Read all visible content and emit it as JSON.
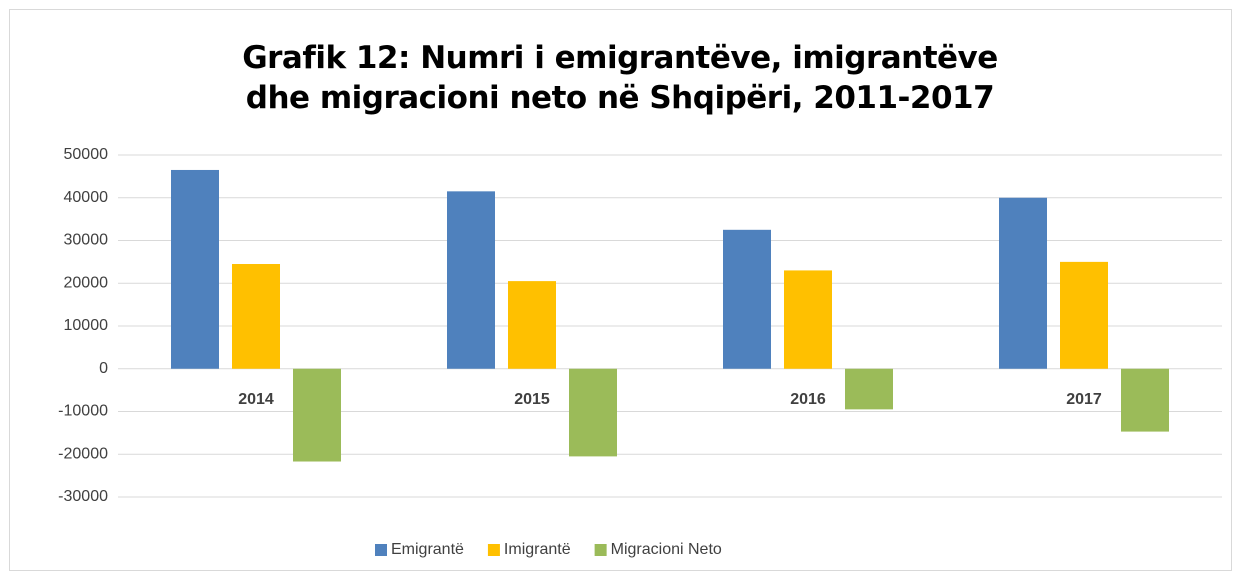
{
  "chart_data": {
    "type": "bar",
    "title": "Grafik 12: Numri i emigrantëve, imigrantëve dhe migracioni neto në Shqipëri, 2011-2017",
    "categories": [
      "2014",
      "2015",
      "2016",
      "2017"
    ],
    "series": [
      {
        "name": "Emigrantë",
        "color": "#4f81bd",
        "values": [
          46500,
          41500,
          32500,
          40000
        ]
      },
      {
        "name": "Imigrantë",
        "color": "#ffc000",
        "values": [
          24500,
          20500,
          23000,
          25000
        ]
      },
      {
        "name": "Migracioni Neto",
        "color": "#9bbb59",
        "values": [
          -21700,
          -20500,
          -9500,
          -14700
        ]
      }
    ],
    "ylim": [
      -30000,
      50000
    ],
    "yticks": [
      -30000,
      -20000,
      -10000,
      0,
      10000,
      20000,
      30000,
      40000,
      50000
    ],
    "grid": true,
    "legend": "bottom"
  }
}
